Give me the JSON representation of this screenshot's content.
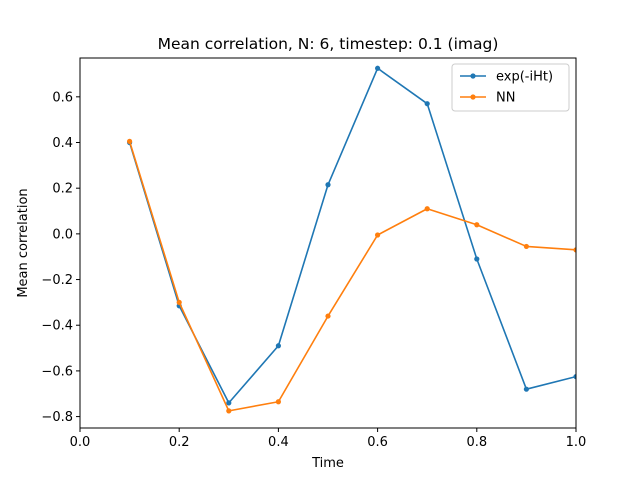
{
  "chart_data": {
    "type": "line",
    "title": "Mean correlation, N: 6, timestep: 0.1 (imag)",
    "xlabel": "Time",
    "ylabel": "Mean correlation",
    "xlim": [
      0.0,
      1.0
    ],
    "ylim": [
      -0.85,
      0.77
    ],
    "xticks": [
      0.0,
      0.2,
      0.4,
      0.6,
      0.8,
      1.0
    ],
    "xtick_labels": [
      "0.0",
      "0.2",
      "0.4",
      "0.6",
      "0.8",
      "1.0"
    ],
    "yticks": [
      -0.8,
      -0.6,
      -0.4,
      -0.2,
      0.0,
      0.2,
      0.4,
      0.6
    ],
    "ytick_labels": [
      "−0.8",
      "−0.6",
      "−0.4",
      "−0.2",
      "0.0",
      "0.2",
      "0.4",
      "0.6"
    ],
    "grid": false,
    "legend_position": "top-right",
    "x": [
      0.1,
      0.2,
      0.3,
      0.4,
      0.5,
      0.6,
      0.7,
      0.8,
      0.9,
      1.0
    ],
    "series": [
      {
        "name": "exp(-iHt)",
        "color": "#1f77b4",
        "values": [
          0.4,
          -0.315,
          -0.74,
          -0.49,
          0.215,
          0.725,
          0.57,
          -0.11,
          -0.68,
          -0.625
        ]
      },
      {
        "name": "NN",
        "color": "#ff7f0e",
        "values": [
          0.405,
          -0.3,
          -0.775,
          -0.735,
          -0.36,
          -0.005,
          0.11,
          0.04,
          -0.055,
          -0.07
        ]
      }
    ]
  }
}
